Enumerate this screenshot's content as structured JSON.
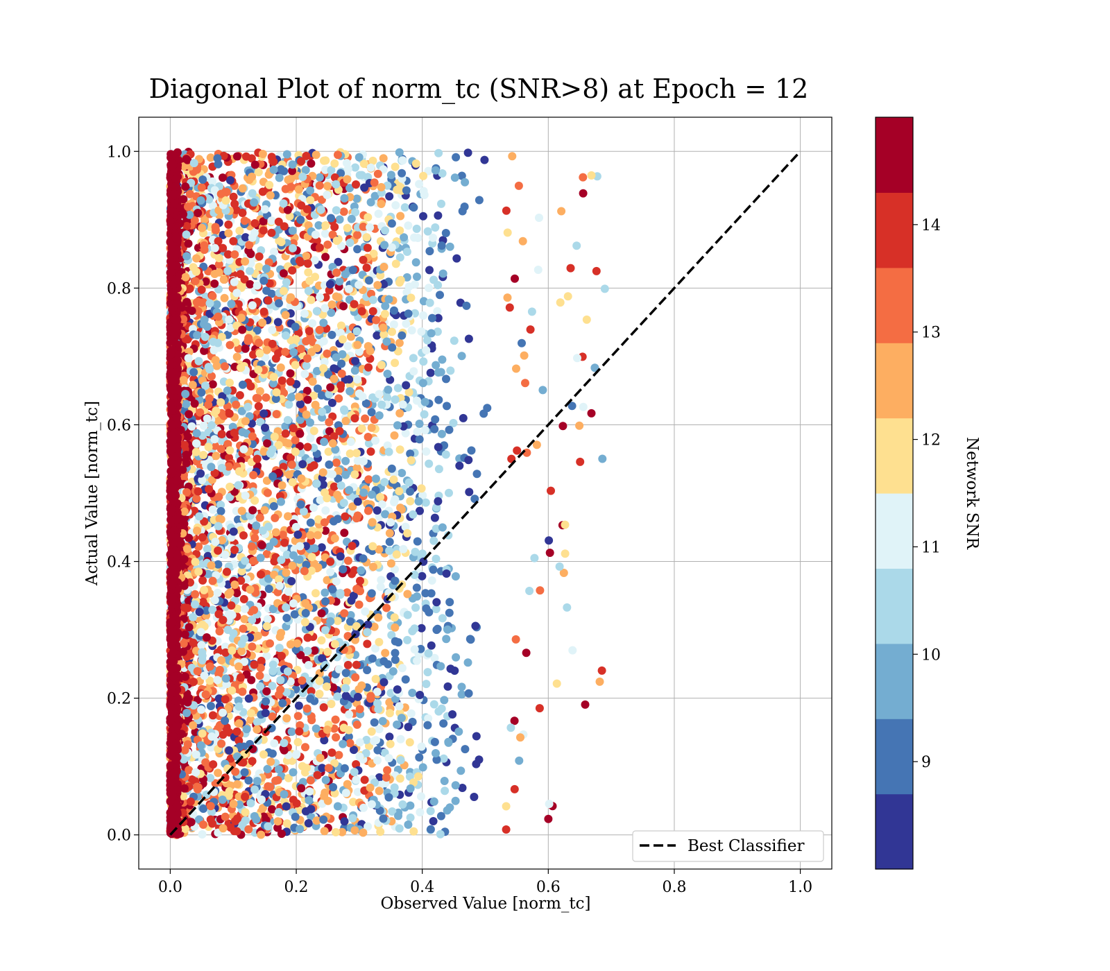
{
  "chart_data": {
    "type": "scatter",
    "title": "Diagonal Plot of norm_tc (SNR>8) at Epoch = 12",
    "xlabel": "Observed Value [norm_tc]",
    "ylabel": "Actual Value [norm_tc]",
    "xlim": [
      -0.05,
      1.05
    ],
    "ylim": [
      -0.05,
      1.05
    ],
    "xticks": [
      "0.0",
      "0.2",
      "0.4",
      "0.6",
      "0.8",
      "1.0"
    ],
    "yticks": [
      "0.0",
      "0.2",
      "0.4",
      "0.6",
      "0.8",
      "1.0"
    ],
    "grid": true,
    "legend": {
      "position": "bottom-right",
      "entries": [
        "Best Classifier"
      ]
    },
    "reference_line": {
      "name": "Best Classifier",
      "style": "dashed",
      "color": "#000000",
      "x": [
        0,
        1
      ],
      "y": [
        0,
        1
      ]
    },
    "scatter": {
      "observed_range": [
        0.0,
        0.7
      ],
      "actual_range": [
        0.0,
        1.0
      ],
      "snr_range": [
        8,
        15
      ],
      "density_note": "observed values concentrated near 0 for high SNR, spread up to ~0.55 for all SNR, sparse outliers to ~0.69"
    },
    "colorbar": {
      "label": "Network SNR",
      "range": [
        8.0,
        15.0
      ],
      "ticks": [
        "9",
        "10",
        "11",
        "12",
        "13",
        "14"
      ],
      "tick_values": [
        9,
        10,
        11,
        12,
        13,
        14
      ],
      "colors": [
        "#313695",
        "#4575b4",
        "#74add1",
        "#abd9e9",
        "#e0f3f8",
        "#fee090",
        "#fdae61",
        "#f46d43",
        "#d73027",
        "#a50026"
      ]
    }
  }
}
